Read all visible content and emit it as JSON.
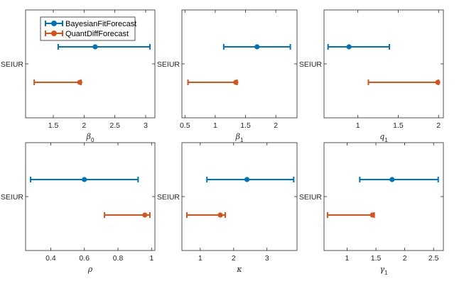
{
  "colors": {
    "bayes": "#0072BD",
    "quant": "#D95319",
    "axis": "#262626"
  },
  "legend": {
    "items": [
      {
        "label": "BayesianFitForecast",
        "color": "#0072BD"
      },
      {
        "label": "QuantDiffForecast",
        "color": "#D95319"
      }
    ]
  },
  "chart_data": [
    {
      "type": "errorbar",
      "title": "",
      "ylabel": "",
      "category": "SEIUR",
      "xlabel": "β",
      "xlabel_sub": "0",
      "xlim": [
        1.05,
        3.15
      ],
      "ticks": [
        1.5,
        2,
        2.5,
        3
      ],
      "tick_labels": [
        "1.5",
        "2",
        "2.5",
        "3"
      ],
      "series": [
        {
          "name": "BayesianFitForecast",
          "estimate": 2.18,
          "lower": 1.58,
          "upper": 3.07
        },
        {
          "name": "QuantDiffForecast",
          "estimate": 1.93,
          "lower": 1.19,
          "upper": 1.95
        }
      ]
    },
    {
      "type": "errorbar",
      "title": "",
      "ylabel": "",
      "category": "SEIUR",
      "xlabel": "β",
      "xlabel_sub": "1",
      "xlim": [
        0.45,
        2.35
      ],
      "ticks": [
        0.5,
        1,
        1.5,
        2
      ],
      "tick_labels": [
        "0.5",
        "1",
        "1.5",
        "2"
      ],
      "series": [
        {
          "name": "BayesianFitForecast",
          "estimate": 1.69,
          "lower": 1.14,
          "upper": 2.24
        },
        {
          "name": "QuantDiffForecast",
          "estimate": 1.34,
          "lower": 0.55,
          "upper": 1.36
        }
      ]
    },
    {
      "type": "errorbar",
      "title": "",
      "ylabel": "",
      "category": "SEIUR",
      "xlabel": "q",
      "xlabel_sub": "1",
      "xlim": [
        0.58,
        2.06
      ],
      "ticks": [
        1,
        1.5,
        2
      ],
      "tick_labels": [
        "1",
        "1.5",
        "2"
      ],
      "series": [
        {
          "name": "BayesianFitForecast",
          "estimate": 0.89,
          "lower": 0.63,
          "upper": 1.39
        },
        {
          "name": "QuantDiffForecast",
          "estimate": 1.99,
          "lower": 1.13,
          "upper": 2.0
        }
      ]
    },
    {
      "type": "errorbar",
      "title": "",
      "ylabel": "",
      "category": "SEIUR",
      "xlabel": "ρ",
      "xlabel_sub": "",
      "xlim": [
        0.25,
        1.02
      ],
      "ticks": [
        0.4,
        0.6,
        0.8,
        1
      ],
      "tick_labels": [
        "0.4",
        "0.6",
        "0.8",
        "1"
      ],
      "series": [
        {
          "name": "BayesianFitForecast",
          "estimate": 0.6,
          "lower": 0.28,
          "upper": 0.92
        },
        {
          "name": "QuantDiffForecast",
          "estimate": 0.96,
          "lower": 0.72,
          "upper": 0.99
        }
      ]
    },
    {
      "type": "errorbar",
      "title": "",
      "ylabel": "",
      "category": "SEIUR",
      "xlabel": "κ",
      "xlabel_sub": "",
      "xlim": [
        0.45,
        3.9
      ],
      "ticks": [
        1,
        2,
        3
      ],
      "tick_labels": [
        "1",
        "2",
        "3"
      ],
      "series": [
        {
          "name": "BayesianFitForecast",
          "estimate": 2.4,
          "lower": 1.2,
          "upper": 3.8
        },
        {
          "name": "QuantDiffForecast",
          "estimate": 1.6,
          "lower": 0.6,
          "upper": 1.75
        }
      ]
    },
    {
      "type": "errorbar",
      "title": "",
      "ylabel": "",
      "category": "SEIUR",
      "xlabel": "γ",
      "xlabel_sub": "1",
      "xlim": [
        0.6,
        2.67
      ],
      "ticks": [
        1,
        1.5,
        2,
        2.5
      ],
      "tick_labels": [
        "1",
        "1.5",
        "2",
        "2.5"
      ],
      "series": [
        {
          "name": "BayesianFitForecast",
          "estimate": 1.78,
          "lower": 1.22,
          "upper": 2.58
        },
        {
          "name": "QuantDiffForecast",
          "estimate": 1.44,
          "lower": 0.66,
          "upper": 1.47
        }
      ]
    }
  ]
}
